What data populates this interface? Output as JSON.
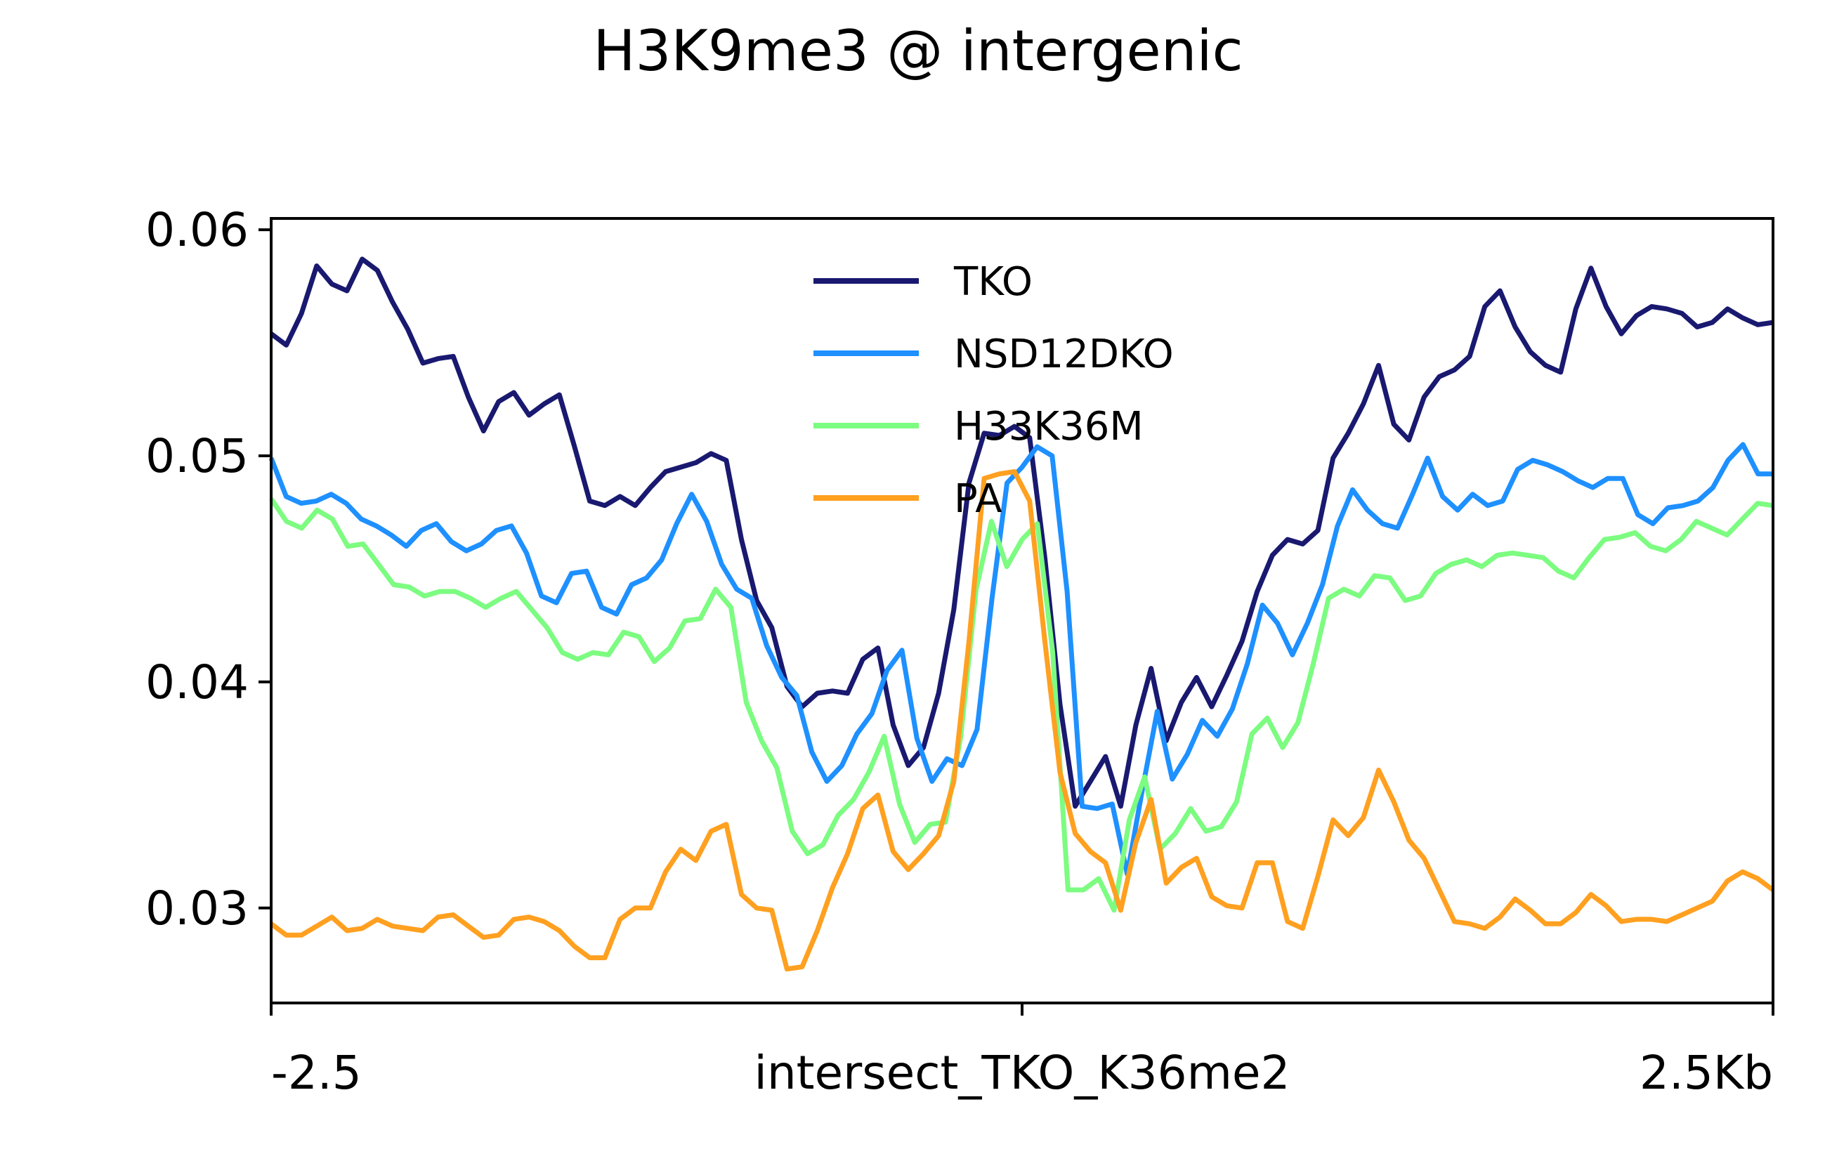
{
  "chart_data": {
    "type": "line",
    "title": "H3K9me3 @ intergenic",
    "x_tick_labels": [
      "-2.5",
      "intersect_TKO_K36me2",
      "2.5Kb"
    ],
    "x_range": [
      0,
      99
    ],
    "ylim": [
      0.0258,
      0.0605
    ],
    "yticks": [
      0.03,
      0.04,
      0.05,
      0.06
    ],
    "ytick_labels": [
      "0.03",
      "0.04",
      "0.05",
      "0.06"
    ],
    "grid": false,
    "legend_position": "top-center",
    "series": [
      {
        "name": "TKO",
        "color": "#191970",
        "values": [
          0.0554,
          0.0549,
          0.0563,
          0.0584,
          0.0576,
          0.0573,
          0.0587,
          0.0582,
          0.0568,
          0.0556,
          0.0541,
          0.0543,
          0.0544,
          0.0526,
          0.0511,
          0.0524,
          0.0528,
          0.0518,
          0.0523,
          0.0527,
          0.0504,
          0.048,
          0.0478,
          0.0482,
          0.0478,
          0.0486,
          0.0493,
          0.0495,
          0.0497,
          0.0501,
          0.0498,
          0.0463,
          0.0436,
          0.0424,
          0.0398,
          0.0389,
          0.0395,
          0.0396,
          0.0395,
          0.041,
          0.0415,
          0.0381,
          0.0363,
          0.0371,
          0.0395,
          0.0432,
          0.0488,
          0.051,
          0.0509,
          0.0513,
          0.0508,
          0.0455,
          0.039,
          0.0345,
          0.0356,
          0.0367,
          0.0345,
          0.0381,
          0.0406,
          0.0374,
          0.0391,
          0.0402,
          0.0389,
          0.0403,
          0.0418,
          0.044,
          0.0456,
          0.0463,
          0.0461,
          0.0467,
          0.0499,
          0.051,
          0.0523,
          0.054,
          0.0514,
          0.0507,
          0.0526,
          0.0535,
          0.0538,
          0.0544,
          0.0566,
          0.0573,
          0.0557,
          0.0546,
          0.054,
          0.0537,
          0.0565,
          0.0583,
          0.0566,
          0.0554,
          0.0562,
          0.0566,
          0.0565,
          0.0563,
          0.0557,
          0.0559,
          0.0565,
          0.0561,
          0.0558,
          0.0559
        ]
      },
      {
        "name": "NSD12DKO",
        "color": "#1e90ff",
        "values": [
          0.0499,
          0.0482,
          0.0479,
          0.048,
          0.0483,
          0.0479,
          0.0472,
          0.0469,
          0.0465,
          0.046,
          0.0467,
          0.047,
          0.0462,
          0.0458,
          0.0461,
          0.0467,
          0.0469,
          0.0457,
          0.0438,
          0.0435,
          0.0448,
          0.0449,
          0.0433,
          0.043,
          0.0443,
          0.0446,
          0.0454,
          0.047,
          0.0483,
          0.0471,
          0.0452,
          0.0441,
          0.0437,
          0.0416,
          0.0402,
          0.0394,
          0.0369,
          0.0356,
          0.0363,
          0.0377,
          0.0386,
          0.0405,
          0.0414,
          0.0375,
          0.0356,
          0.0366,
          0.0363,
          0.0379,
          0.0437,
          0.0488,
          0.0495,
          0.0504,
          0.05,
          0.044,
          0.0345,
          0.0344,
          0.0346,
          0.0315,
          0.0352,
          0.0387,
          0.0357,
          0.0368,
          0.0383,
          0.0376,
          0.0388,
          0.0408,
          0.0434,
          0.0426,
          0.0412,
          0.0426,
          0.0443,
          0.0469,
          0.0485,
          0.0476,
          0.047,
          0.0468,
          0.0483,
          0.0499,
          0.0482,
          0.0476,
          0.0483,
          0.0478,
          0.048,
          0.0494,
          0.0498,
          0.0496,
          0.0493,
          0.0489,
          0.0486,
          0.049,
          0.049,
          0.0474,
          0.047,
          0.0477,
          0.0478,
          0.048,
          0.0486,
          0.0498,
          0.0505,
          0.0492,
          0.0492
        ]
      },
      {
        "name": "H33K36M",
        "color": "#7cfc80",
        "values": [
          0.0481,
          0.0471,
          0.0468,
          0.0476,
          0.0472,
          0.046,
          0.0461,
          0.0452,
          0.0443,
          0.0442,
          0.0438,
          0.044,
          0.044,
          0.0437,
          0.0433,
          0.0437,
          0.044,
          0.0432,
          0.0424,
          0.0413,
          0.041,
          0.0413,
          0.0412,
          0.0422,
          0.042,
          0.0409,
          0.0415,
          0.0427,
          0.0428,
          0.0441,
          0.0433,
          0.0391,
          0.0374,
          0.0362,
          0.0334,
          0.0324,
          0.0328,
          0.0341,
          0.0348,
          0.036,
          0.0376,
          0.0346,
          0.0329,
          0.0337,
          0.0338,
          0.0376,
          0.0441,
          0.0471,
          0.0451,
          0.0463,
          0.047,
          0.0413,
          0.0308,
          0.0308,
          0.0313,
          0.0299,
          0.0339,
          0.0358,
          0.0326,
          0.0333,
          0.0344,
          0.0334,
          0.0336,
          0.0347,
          0.0377,
          0.0384,
          0.0371,
          0.0382,
          0.0408,
          0.0437,
          0.0441,
          0.0438,
          0.0447,
          0.0446,
          0.0436,
          0.0438,
          0.0448,
          0.0452,
          0.0454,
          0.0451,
          0.0456,
          0.0457,
          0.0456,
          0.0455,
          0.0449,
          0.0446,
          0.0455,
          0.0463,
          0.0464,
          0.0466,
          0.046,
          0.0458,
          0.0463,
          0.0471,
          0.0468,
          0.0465,
          0.0472,
          0.0479,
          0.0478
        ]
      },
      {
        "name": "PA",
        "color": "#ffa020",
        "values": [
          0.0293,
          0.0288,
          0.0288,
          0.0292,
          0.0296,
          0.029,
          0.0291,
          0.0295,
          0.0292,
          0.0291,
          0.029,
          0.0296,
          0.0297,
          0.0292,
          0.0287,
          0.0288,
          0.0295,
          0.0296,
          0.0294,
          0.029,
          0.0283,
          0.0278,
          0.0278,
          0.0295,
          0.03,
          0.03,
          0.0316,
          0.0326,
          0.0321,
          0.0334,
          0.0337,
          0.0306,
          0.03,
          0.0299,
          0.0273,
          0.0274,
          0.029,
          0.0309,
          0.0324,
          0.0344,
          0.035,
          0.0325,
          0.0317,
          0.0324,
          0.0332,
          0.0356,
          0.0418,
          0.049,
          0.0492,
          0.0493,
          0.048,
          0.0418,
          0.036,
          0.0333,
          0.0325,
          0.032,
          0.0299,
          0.0329,
          0.0348,
          0.0311,
          0.0318,
          0.0322,
          0.0305,
          0.0301,
          0.03,
          0.032,
          0.032,
          0.0294,
          0.0291,
          0.0314,
          0.0339,
          0.0332,
          0.034,
          0.0361,
          0.0347,
          0.033,
          0.0322,
          0.0308,
          0.0294,
          0.0293,
          0.0291,
          0.0296,
          0.0304,
          0.0299,
          0.0293,
          0.0293,
          0.0298,
          0.0306,
          0.0301,
          0.0294,
          0.0295,
          0.0295,
          0.0294,
          0.0297,
          0.03,
          0.0303,
          0.0312,
          0.0316,
          0.0313,
          0.0308
        ]
      }
    ]
  }
}
